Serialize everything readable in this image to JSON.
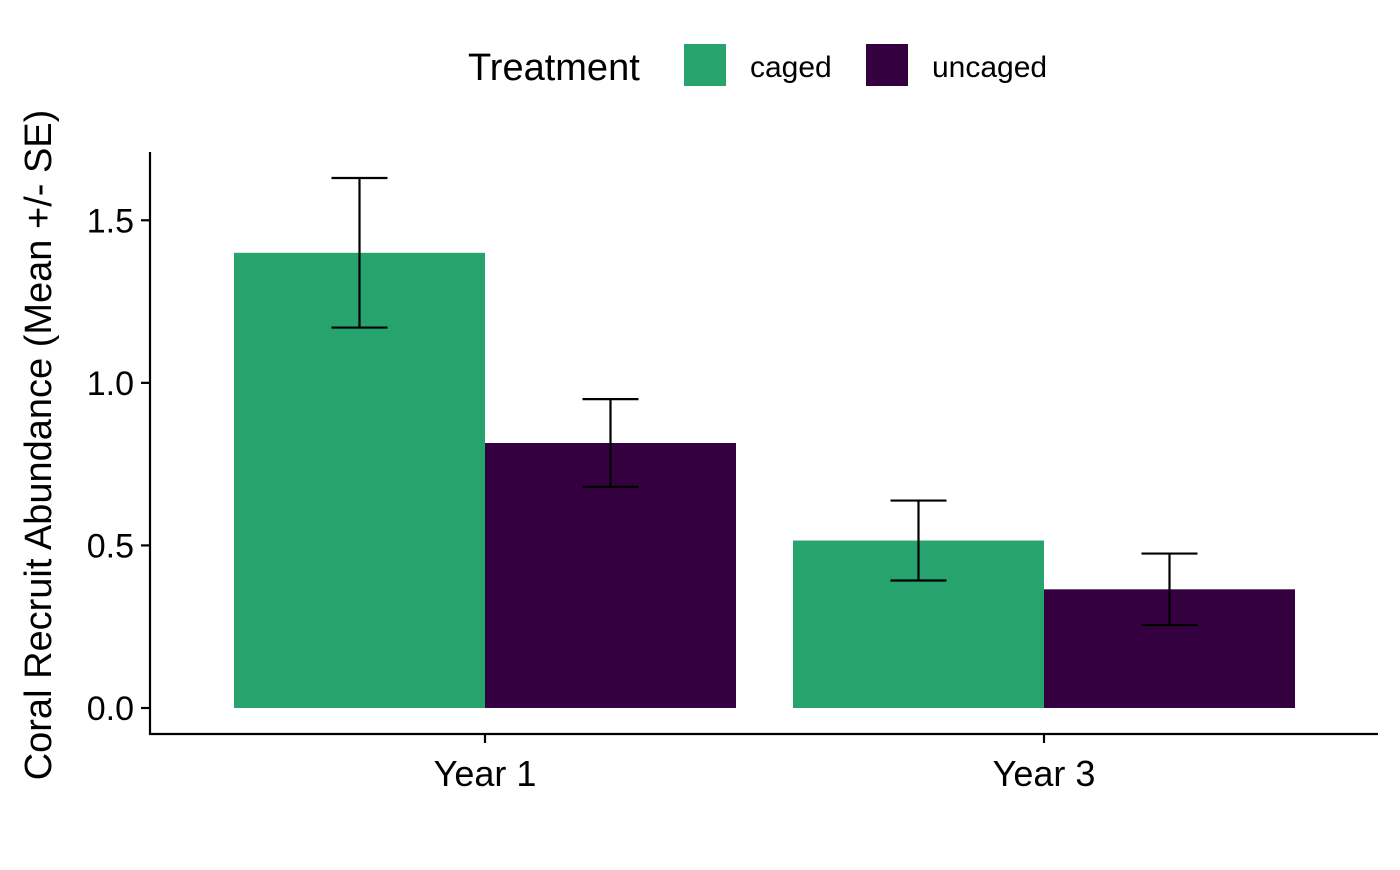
{
  "chart_data": {
    "type": "bar",
    "categories": [
      "Year 1",
      "Year 3"
    ],
    "series": [
      {
        "name": "caged",
        "color": "#27A36E",
        "values": [
          1.4,
          0.515
        ],
        "errors": [
          0.23,
          0.123
        ]
      },
      {
        "name": "uncaged",
        "color": "#340040",
        "values": [
          0.815,
          0.365
        ],
        "errors": [
          0.135,
          0.11
        ]
      }
    ],
    "title": "",
    "xlabel": "",
    "ylabel": "Coral Recruit Abundance (Mean +/- SE)",
    "ylim": [
      -0.08,
      1.71
    ],
    "yticks": [
      0.0,
      0.5,
      1.0,
      1.5
    ],
    "ytick_labels": [
      "0.0",
      "0.5",
      "1.0",
      "1.5"
    ],
    "legend": {
      "title": "Treatment",
      "position": "top"
    },
    "grid": false,
    "error_bar_color": "#000000"
  }
}
